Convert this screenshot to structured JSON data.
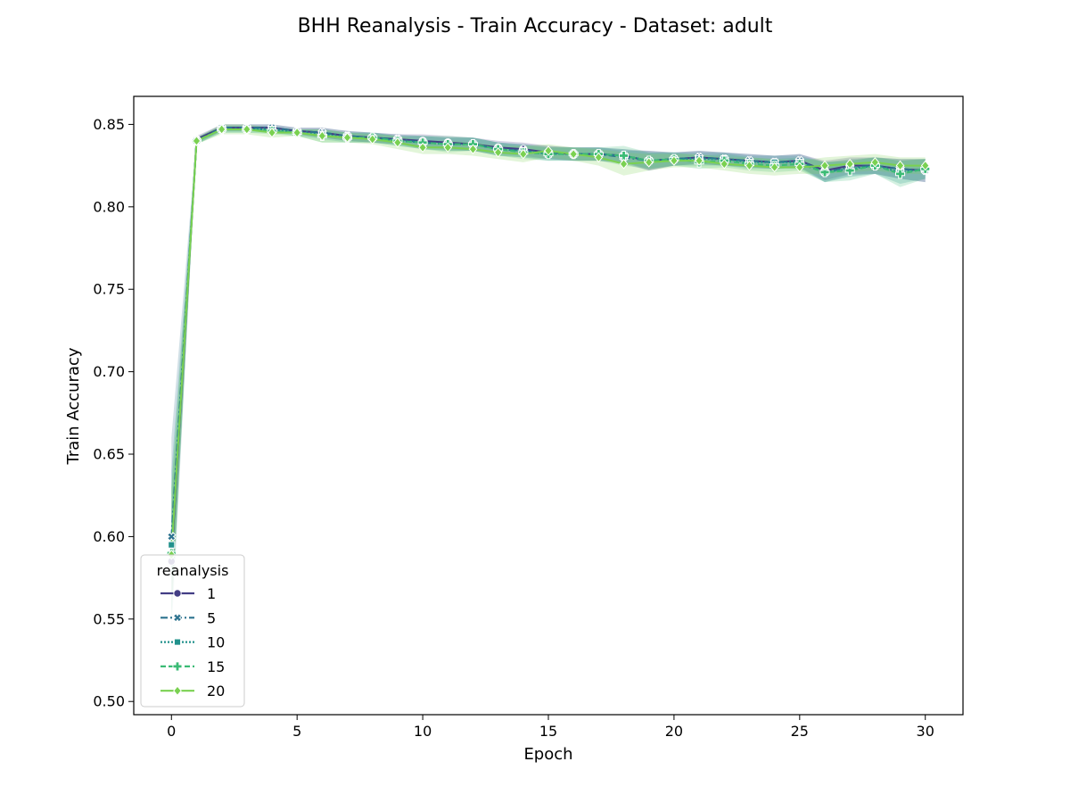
{
  "chart_data": {
    "type": "line",
    "title": "BHH Reanalysis - Train Accuracy - Dataset: adult",
    "xlabel": "Epoch",
    "ylabel": "Train Accuracy",
    "xlim": [
      -1.5,
      31.5
    ],
    "ylim": [
      0.492,
      0.867
    ],
    "xticks": [
      0,
      5,
      10,
      15,
      20,
      25,
      30
    ],
    "yticks": [
      0.5,
      0.55,
      0.6,
      0.65,
      0.7,
      0.75,
      0.8,
      0.85
    ],
    "grid": false,
    "legend": {
      "title": "reanalysis",
      "position": "lower-left"
    },
    "x": [
      0,
      1,
      2,
      3,
      4,
      5,
      6,
      7,
      8,
      9,
      10,
      11,
      12,
      13,
      14,
      15,
      16,
      17,
      18,
      19,
      20,
      21,
      22,
      23,
      24,
      25,
      26,
      27,
      28,
      29,
      30
    ],
    "series": [
      {
        "name": "1",
        "color": "#433e85",
        "dash": "",
        "marker": "circle",
        "values": [
          0.585,
          0.841,
          0.848,
          0.848,
          0.848,
          0.846,
          0.845,
          0.843,
          0.842,
          0.841,
          0.84,
          0.839,
          0.838,
          0.836,
          0.835,
          0.833,
          0.832,
          0.832,
          0.831,
          0.828,
          0.829,
          0.83,
          0.829,
          0.828,
          0.827,
          0.828,
          0.822,
          0.825,
          0.825,
          0.823,
          0.822
        ],
        "band": [
          0.03,
          0.002,
          0.002,
          0.002,
          0.002,
          0.002,
          0.003,
          0.003,
          0.003,
          0.003,
          0.004,
          0.004,
          0.004,
          0.004,
          0.004,
          0.004,
          0.004,
          0.004,
          0.004,
          0.006,
          0.004,
          0.004,
          0.004,
          0.004,
          0.004,
          0.004,
          0.006,
          0.005,
          0.005,
          0.006,
          0.007
        ]
      },
      {
        "name": "5",
        "color": "#2c728e",
        "dash": "8,3,2,3",
        "marker": "x",
        "values": [
          0.6,
          0.84,
          0.848,
          0.848,
          0.848,
          0.846,
          0.845,
          0.843,
          0.842,
          0.841,
          0.839,
          0.838,
          0.838,
          0.835,
          0.834,
          0.833,
          0.832,
          0.832,
          0.83,
          0.828,
          0.829,
          0.83,
          0.829,
          0.828,
          0.827,
          0.828,
          0.821,
          0.824,
          0.825,
          0.823,
          0.822
        ],
        "band": [
          0.06,
          0.002,
          0.002,
          0.002,
          0.002,
          0.002,
          0.003,
          0.003,
          0.003,
          0.003,
          0.004,
          0.004,
          0.004,
          0.004,
          0.004,
          0.004,
          0.004,
          0.004,
          0.004,
          0.006,
          0.004,
          0.004,
          0.004,
          0.004,
          0.004,
          0.004,
          0.006,
          0.005,
          0.005,
          0.006,
          0.007
        ]
      },
      {
        "name": "10",
        "color": "#21918c",
        "dash": "2,2",
        "marker": "square",
        "values": [
          0.595,
          0.84,
          0.847,
          0.847,
          0.847,
          0.845,
          0.844,
          0.842,
          0.842,
          0.84,
          0.839,
          0.838,
          0.838,
          0.835,
          0.834,
          0.832,
          0.832,
          0.832,
          0.831,
          0.828,
          0.829,
          0.829,
          0.829,
          0.827,
          0.827,
          0.827,
          0.821,
          0.823,
          0.825,
          0.821,
          0.823
        ],
        "band": [
          0.045,
          0.002,
          0.002,
          0.002,
          0.002,
          0.002,
          0.003,
          0.003,
          0.003,
          0.003,
          0.004,
          0.004,
          0.004,
          0.004,
          0.004,
          0.004,
          0.004,
          0.004,
          0.004,
          0.005,
          0.004,
          0.004,
          0.004,
          0.004,
          0.004,
          0.004,
          0.006,
          0.005,
          0.005,
          0.007,
          0.006
        ]
      },
      {
        "name": "15",
        "color": "#3bbb75",
        "dash": "6,3",
        "marker": "plus",
        "values": [
          0.59,
          0.84,
          0.847,
          0.847,
          0.846,
          0.845,
          0.843,
          0.842,
          0.842,
          0.84,
          0.839,
          0.838,
          0.838,
          0.835,
          0.833,
          0.832,
          0.832,
          0.832,
          0.831,
          0.828,
          0.829,
          0.827,
          0.828,
          0.826,
          0.825,
          0.826,
          0.821,
          0.822,
          0.825,
          0.82,
          0.823
        ],
        "band": [
          0.04,
          0.002,
          0.002,
          0.002,
          0.002,
          0.002,
          0.004,
          0.003,
          0.003,
          0.003,
          0.004,
          0.005,
          0.004,
          0.004,
          0.004,
          0.004,
          0.004,
          0.004,
          0.006,
          0.005,
          0.004,
          0.004,
          0.004,
          0.004,
          0.004,
          0.004,
          0.006,
          0.006,
          0.005,
          0.008,
          0.006
        ]
      },
      {
        "name": "20",
        "color": "#7ad151",
        "dash": "",
        "marker": "diamond",
        "values": [
          0.589,
          0.84,
          0.847,
          0.847,
          0.845,
          0.845,
          0.843,
          0.842,
          0.841,
          0.839,
          0.836,
          0.836,
          0.835,
          0.833,
          0.832,
          0.834,
          0.832,
          0.83,
          0.826,
          0.827,
          0.828,
          0.828,
          0.826,
          0.825,
          0.824,
          0.824,
          0.825,
          0.826,
          0.827,
          0.825,
          0.825
        ],
        "band": [
          0.04,
          0.002,
          0.003,
          0.003,
          0.003,
          0.002,
          0.004,
          0.003,
          0.003,
          0.004,
          0.004,
          0.004,
          0.004,
          0.004,
          0.005,
          0.004,
          0.004,
          0.005,
          0.007,
          0.005,
          0.004,
          0.004,
          0.004,
          0.005,
          0.005,
          0.004,
          0.005,
          0.005,
          0.005,
          0.005,
          0.005
        ]
      }
    ]
  }
}
